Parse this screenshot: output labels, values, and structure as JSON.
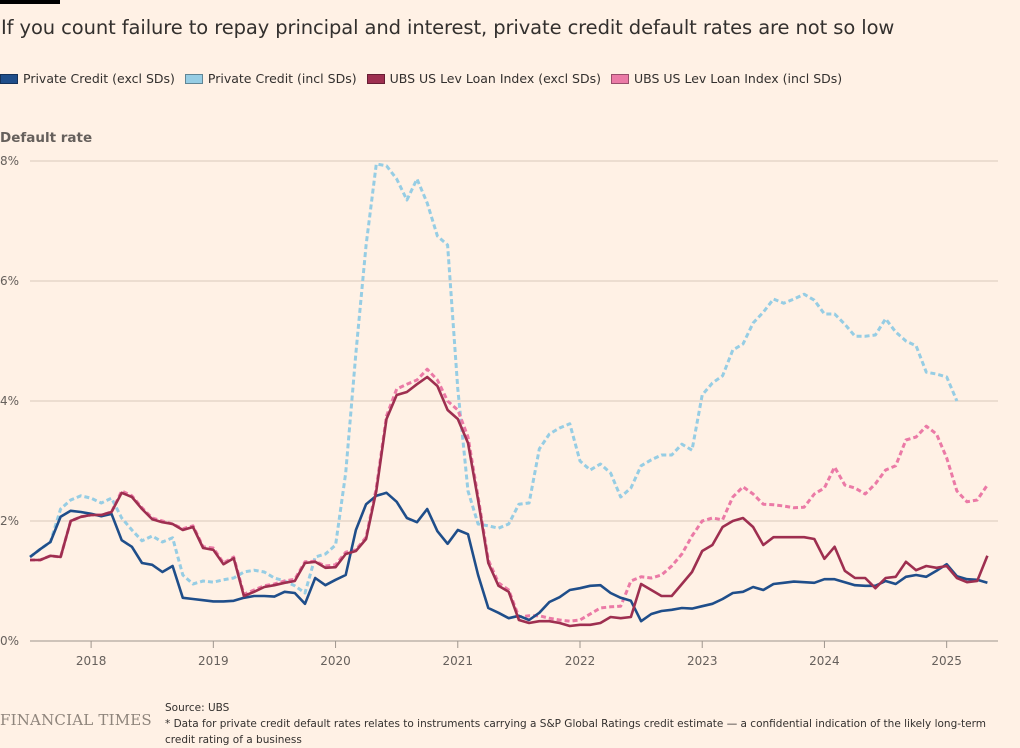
{
  "title": "If you count failure to repay principal and interest, private credit default rates are not so low",
  "brand": "FINANCIAL TIMES",
  "source": "Source: UBS",
  "footnote": "* Data for private credit default rates relates to instruments carrying a S&P Global Ratings credit estimate — a confidential indication of the likely long-term credit rating of a business",
  "chart_data": {
    "type": "line",
    "title": "If you count failure to repay principal and interest, private credit default rates are not so low",
    "xlabel": "",
    "ylabel": "Default rate",
    "y_unit": "%",
    "ylim": [
      0,
      8
    ],
    "yticks": [
      0,
      2,
      4,
      6,
      8
    ],
    "ytick_labels": [
      "0%",
      "2%",
      "4%",
      "6%",
      "8%"
    ],
    "xlim": [
      2017.5,
      2025.42
    ],
    "xticks": [
      2018,
      2019,
      2020,
      2021,
      2022,
      2023,
      2024,
      2025
    ],
    "xtick_labels": [
      "2018",
      "2019",
      "2020",
      "2021",
      "2022",
      "2023",
      "2024",
      "2025"
    ],
    "grid": "horizontal",
    "legend_position": "top-left",
    "x_start": 2017.5,
    "x_step_months": 1,
    "series": [
      {
        "name": "Private Credit (excl SDs)",
        "color": "#1f4e8a",
        "style": "solid",
        "values": [
          1.4,
          1.53,
          1.65,
          2.07,
          2.17,
          2.15,
          2.12,
          2.08,
          2.12,
          1.68,
          1.57,
          1.3,
          1.27,
          1.15,
          1.25,
          0.72,
          0.7,
          0.68,
          0.66,
          0.66,
          0.67,
          0.72,
          0.75,
          0.75,
          0.74,
          0.82,
          0.8,
          0.62,
          1.05,
          0.93,
          1.02,
          1.1,
          1.85,
          2.28,
          2.42,
          2.47,
          2.32,
          2.05,
          1.98,
          2.2,
          1.83,
          1.62,
          1.85,
          1.78,
          1.1,
          0.55,
          0.47,
          0.38,
          0.42,
          0.35,
          0.47,
          0.65,
          0.73,
          0.85,
          0.88,
          0.92,
          0.93,
          0.8,
          0.72,
          0.67,
          0.33,
          0.45,
          0.5,
          0.52,
          0.55,
          0.54,
          0.58,
          0.62,
          0.7,
          0.8,
          0.82,
          0.9,
          0.85,
          0.95,
          0.97,
          0.99,
          0.98,
          0.97,
          1.03,
          1.03,
          0.98,
          0.93,
          0.92,
          0.92,
          1.0,
          0.95,
          1.07,
          1.1,
          1.07,
          1.17,
          1.28,
          1.08,
          1.03,
          1.02,
          0.97
        ]
      },
      {
        "name": "Private Credit (incl SDs)",
        "color": "#96cde4",
        "style": "dashed",
        "values": [
          1.4,
          1.53,
          1.65,
          2.2,
          2.35,
          2.42,
          2.38,
          2.3,
          2.38,
          2.05,
          1.85,
          1.67,
          1.75,
          1.65,
          1.72,
          1.1,
          0.95,
          1.0,
          0.98,
          1.02,
          1.05,
          1.15,
          1.18,
          1.15,
          1.05,
          1.0,
          0.92,
          0.8,
          1.4,
          1.45,
          1.6,
          2.8,
          4.8,
          6.6,
          7.95,
          7.92,
          7.7,
          7.35,
          7.7,
          7.3,
          6.75,
          6.6,
          4.2,
          2.5,
          1.95,
          1.92,
          1.88,
          1.95,
          2.28,
          2.3,
          3.2,
          3.45,
          3.55,
          3.62,
          3.0,
          2.85,
          2.95,
          2.8,
          2.4,
          2.55,
          2.92,
          3.02,
          3.1,
          3.1,
          3.28,
          3.18,
          4.1,
          4.3,
          4.42,
          4.85,
          4.95,
          5.3,
          5.48,
          5.7,
          5.63,
          5.7,
          5.78,
          5.68,
          5.45,
          5.45,
          5.28,
          5.08,
          5.08,
          5.1,
          5.37,
          5.15,
          5.0,
          4.92,
          4.48,
          4.45,
          4.4,
          4.0
        ]
      },
      {
        "name": "UBS US Lev Loan Index (excl SDs)",
        "color": "#9e2f50",
        "style": "solid",
        "values": [
          1.35,
          1.35,
          1.42,
          1.4,
          2.0,
          2.07,
          2.1,
          2.1,
          2.15,
          2.47,
          2.4,
          2.2,
          2.03,
          1.98,
          1.95,
          1.85,
          1.9,
          1.55,
          1.52,
          1.28,
          1.38,
          0.75,
          0.82,
          0.9,
          0.93,
          0.97,
          1.0,
          1.3,
          1.32,
          1.22,
          1.23,
          1.45,
          1.5,
          1.7,
          2.5,
          3.7,
          4.1,
          4.15,
          4.28,
          4.4,
          4.25,
          3.85,
          3.7,
          3.3,
          2.35,
          1.3,
          0.92,
          0.82,
          0.35,
          0.3,
          0.33,
          0.33,
          0.3,
          0.25,
          0.27,
          0.27,
          0.3,
          0.4,
          0.38,
          0.4,
          0.95,
          0.85,
          0.75,
          0.75,
          0.95,
          1.15,
          1.5,
          1.6,
          1.9,
          2.0,
          2.05,
          1.9,
          1.6,
          1.73,
          1.73,
          1.73,
          1.73,
          1.7,
          1.37,
          1.57,
          1.17,
          1.05,
          1.05,
          0.88,
          1.05,
          1.07,
          1.32,
          1.18,
          1.25,
          1.22,
          1.25,
          1.05,
          0.98,
          1.0,
          1.42
        ]
      },
      {
        "name": "UBS US Lev Loan Index (incl SDs)",
        "color": "#eb7aa6",
        "style": "dashed",
        "values": [
          1.35,
          1.35,
          1.42,
          1.4,
          2.0,
          2.07,
          2.1,
          2.1,
          2.15,
          2.5,
          2.42,
          2.22,
          2.05,
          2.0,
          1.95,
          1.87,
          1.92,
          1.57,
          1.55,
          1.3,
          1.4,
          0.78,
          0.85,
          0.92,
          0.95,
          1.0,
          1.03,
          1.32,
          1.33,
          1.25,
          1.27,
          1.48,
          1.52,
          1.73,
          2.55,
          3.75,
          4.2,
          4.28,
          4.35,
          4.53,
          4.35,
          4.0,
          3.85,
          3.4,
          2.4,
          1.35,
          0.97,
          0.85,
          0.4,
          0.42,
          0.42,
          0.38,
          0.35,
          0.33,
          0.35,
          0.45,
          0.55,
          0.57,
          0.58,
          1.0,
          1.07,
          1.05,
          1.1,
          1.25,
          1.45,
          1.75,
          2.0,
          2.05,
          2.02,
          2.4,
          2.57,
          2.45,
          2.28,
          2.27,
          2.25,
          2.22,
          2.23,
          2.45,
          2.55,
          2.9,
          2.6,
          2.55,
          2.45,
          2.62,
          2.85,
          2.92,
          3.35,
          3.4,
          3.58,
          3.45,
          3.05,
          2.5,
          2.32,
          2.35,
          2.6
        ]
      }
    ]
  }
}
